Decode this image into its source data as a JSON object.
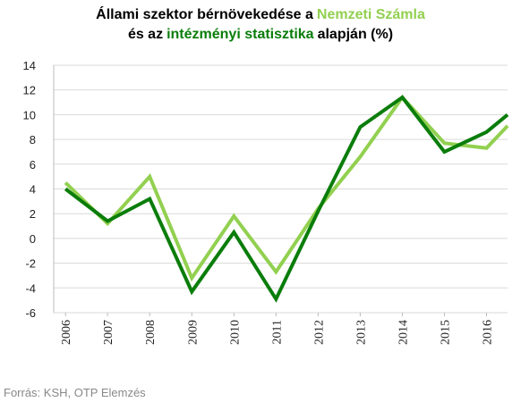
{
  "chart_data": {
    "type": "line",
    "title": {
      "line1_start": "Állami szektor bérnövekedése a",
      "line2_start": "és az",
      "line2_end": "alapján (%)"
    },
    "x": [
      2006,
      2007,
      2008,
      2009,
      2010,
      2011,
      2012,
      2013,
      2014,
      2015,
      2016,
      2016.5
    ],
    "xlim": [
      2005.72,
      2016.5
    ],
    "xticks": [
      2006,
      2007,
      2008,
      2009,
      2010,
      2011,
      2012,
      2013,
      2014,
      2015,
      2016
    ],
    "ylim": [
      -6,
      14
    ],
    "yticks": [
      -6,
      -4,
      -2,
      0,
      2,
      4,
      6,
      8,
      10,
      12,
      14
    ],
    "grid": true,
    "series": [
      {
        "name": "Nemzeti Számla",
        "color": "#92d050",
        "values": [
          4.5,
          1.2,
          5.0,
          -3.2,
          1.8,
          -2.7,
          2.4,
          6.6,
          11.4,
          7.7,
          7.3,
          9.1
        ]
      },
      {
        "name": "intézményi statisztika",
        "color": "#0a7d0a",
        "values": [
          4.0,
          1.4,
          3.2,
          -4.3,
          0.5,
          -4.9,
          2.2,
          9.0,
          11.4,
          7.0,
          8.6,
          10.0
        ]
      }
    ],
    "source": "Forrás: KSH, OTP Elemzés"
  }
}
